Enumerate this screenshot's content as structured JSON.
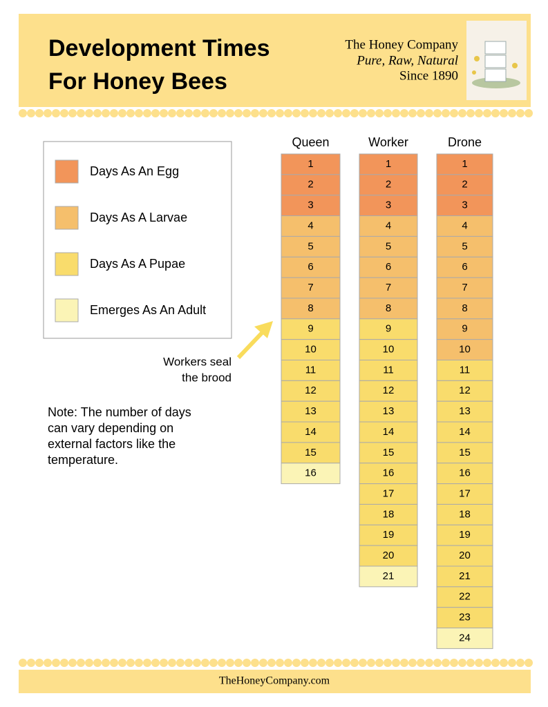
{
  "header": {
    "title": [
      "Development Times",
      "For Honey Bees"
    ],
    "company": [
      "The Honey Company",
      "Pure, Raw, Natural",
      "Since 1890"
    ]
  },
  "legend": [
    {
      "label": "Days As An Egg",
      "color": "#f2955a"
    },
    {
      "label": "Days As A Larvae",
      "color": "#f5bf6c"
    },
    {
      "label": "Days As A Pupae",
      "color": "#f9dc6c"
    },
    {
      "label": "Emerges As An Adult",
      "color": "#fbf4b6"
    }
  ],
  "callout": [
    "Workers seal",
    "the brood"
  ],
  "note": [
    "Note: The number of days",
    "can vary depending on",
    "external factors like the",
    "temperature."
  ],
  "columns": [
    {
      "name": "Queen",
      "stages": [
        [
          1,
          2,
          3
        ],
        [
          4,
          5,
          6,
          7,
          8
        ],
        [
          9,
          10,
          11,
          12,
          13,
          14,
          15
        ],
        [
          16
        ]
      ]
    },
    {
      "name": "Worker",
      "stages": [
        [
          1,
          2,
          3
        ],
        [
          4,
          5,
          6,
          7,
          8
        ],
        [
          9,
          10,
          11,
          12,
          13,
          14,
          15,
          16,
          17,
          18,
          19,
          20
        ],
        [
          21
        ]
      ]
    },
    {
      "name": "Drone",
      "stages": [
        [
          1,
          2,
          3
        ],
        [
          4,
          5,
          6,
          7,
          8,
          9,
          10
        ],
        [
          11,
          12,
          13,
          14,
          15,
          16,
          17,
          18,
          19,
          20,
          21,
          22,
          23
        ],
        [
          24
        ]
      ]
    }
  ],
  "footer": "TheHoneyCompany.com"
}
